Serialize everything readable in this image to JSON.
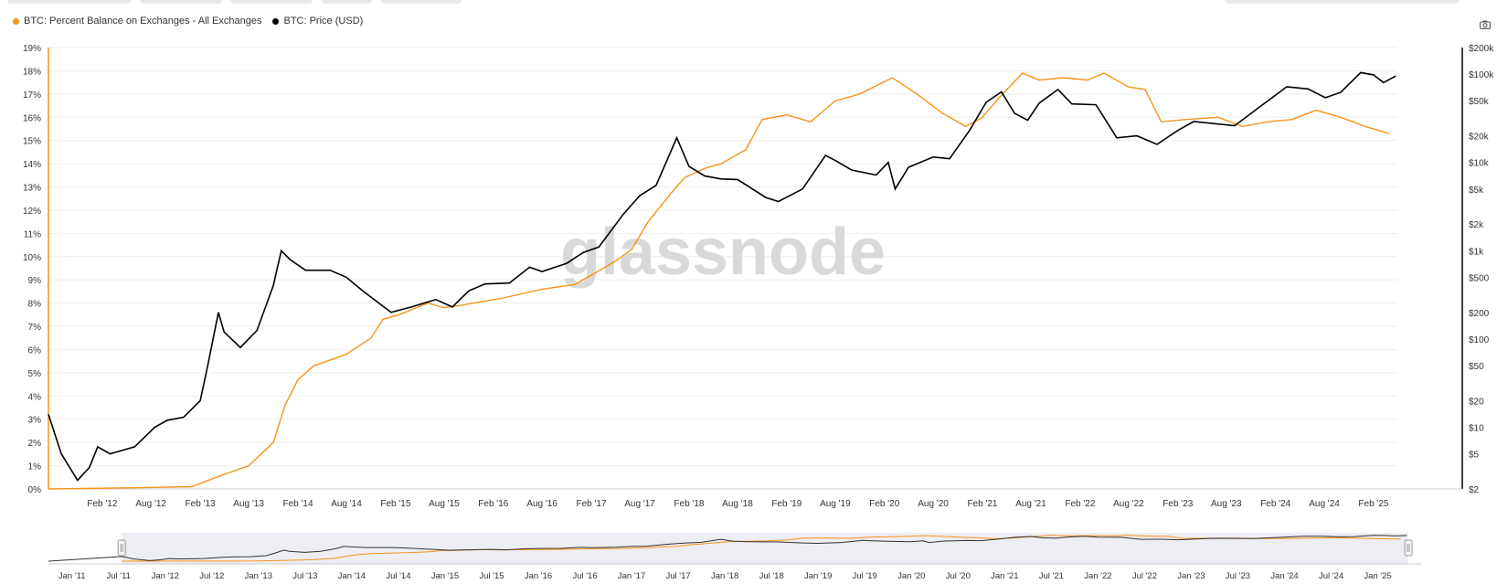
{
  "legend": {
    "series_1": "BTC: Percent Balance on Exchanges - All Exchanges",
    "series_2": "BTC: Price (USD)"
  },
  "watermark": "glassnode",
  "colors": {
    "balance": "#f7931a",
    "price": "#000000",
    "grid": "#eeeeee",
    "navigator_fill": "#eceef4"
  },
  "icons": {
    "camera": "camera-icon",
    "handle": "navigator-handle-icon"
  },
  "chart_data": {
    "type": "line",
    "y_left": {
      "ylim": [
        0,
        19
      ],
      "ticks": [
        "0%",
        "1%",
        "2%",
        "3%",
        "4%",
        "5%",
        "6%",
        "7%",
        "8%",
        "9%",
        "10%",
        "11%",
        "12%",
        "13%",
        "14%",
        "15%",
        "16%",
        "17%",
        "18%",
        "19%"
      ]
    },
    "y_right": {
      "scale": "log",
      "ticks": [
        {
          "label": "$2",
          "value": 2
        },
        {
          "label": "$5",
          "value": 5
        },
        {
          "label": "$10",
          "value": 10
        },
        {
          "label": "$20",
          "value": 20
        },
        {
          "label": "$50",
          "value": 50
        },
        {
          "label": "$100",
          "value": 100
        },
        {
          "label": "$200",
          "value": 200
        },
        {
          "label": "$500",
          "value": 500
        },
        {
          "label": "$1k",
          "value": 1000
        },
        {
          "label": "$2k",
          "value": 2000
        },
        {
          "label": "$5k",
          "value": 5000
        },
        {
          "label": "$10k",
          "value": 10000
        },
        {
          "label": "$20k",
          "value": 20000
        },
        {
          "label": "$50k",
          "value": 50000
        },
        {
          "label": "$100k",
          "value": 100000
        },
        {
          "label": "$200k",
          "value": 200000
        }
      ]
    },
    "x_range": [
      "2011-07-15",
      "2025-05-01"
    ],
    "x_ticks": [
      {
        "label": "Feb '12",
        "date": "2012-02-01"
      },
      {
        "label": "Aug '12",
        "date": "2012-08-01"
      },
      {
        "label": "Feb '13",
        "date": "2013-02-01"
      },
      {
        "label": "Aug '13",
        "date": "2013-08-01"
      },
      {
        "label": "Feb '14",
        "date": "2014-02-01"
      },
      {
        "label": "Aug '14",
        "date": "2014-08-01"
      },
      {
        "label": "Feb '15",
        "date": "2015-02-01"
      },
      {
        "label": "Aug '15",
        "date": "2015-08-01"
      },
      {
        "label": "Feb '16",
        "date": "2016-02-01"
      },
      {
        "label": "Aug '16",
        "date": "2016-08-01"
      },
      {
        "label": "Feb '17",
        "date": "2017-02-01"
      },
      {
        "label": "Aug '17",
        "date": "2017-08-01"
      },
      {
        "label": "Feb '18",
        "date": "2018-02-01"
      },
      {
        "label": "Aug '18",
        "date": "2018-08-01"
      },
      {
        "label": "Feb '19",
        "date": "2019-02-01"
      },
      {
        "label": "Aug '19",
        "date": "2019-08-01"
      },
      {
        "label": "Feb '20",
        "date": "2020-02-01"
      },
      {
        "label": "Aug '20",
        "date": "2020-08-01"
      },
      {
        "label": "Feb '21",
        "date": "2021-02-01"
      },
      {
        "label": "Aug '21",
        "date": "2021-08-01"
      },
      {
        "label": "Feb '22",
        "date": "2022-02-01"
      },
      {
        "label": "Aug '22",
        "date": "2022-08-01"
      },
      {
        "label": "Feb '23",
        "date": "2023-02-01"
      },
      {
        "label": "Aug '23",
        "date": "2023-08-01"
      },
      {
        "label": "Feb '24",
        "date": "2024-02-01"
      },
      {
        "label": "Aug '24",
        "date": "2024-08-01"
      },
      {
        "label": "Feb '25",
        "date": "2025-02-01"
      }
    ],
    "series": [
      {
        "name": "BTC: Percent Balance on Exchanges - All Exchanges",
        "axis": "left",
        "points": [
          [
            "2011-07-15",
            0.0
          ],
          [
            "2012-06-01",
            0.05
          ],
          [
            "2013-01-01",
            0.1
          ],
          [
            "2013-04-01",
            0.5
          ],
          [
            "2013-08-01",
            1.0
          ],
          [
            "2013-11-01",
            2.0
          ],
          [
            "2013-12-15",
            3.6
          ],
          [
            "2014-02-01",
            4.7
          ],
          [
            "2014-04-01",
            5.3
          ],
          [
            "2014-08-01",
            5.8
          ],
          [
            "2014-11-01",
            6.5
          ],
          [
            "2014-12-15",
            7.3
          ],
          [
            "2015-02-15",
            7.5
          ],
          [
            "2015-06-01",
            8.0
          ],
          [
            "2015-08-01",
            7.8
          ],
          [
            "2015-10-01",
            7.9
          ],
          [
            "2016-03-01",
            8.2
          ],
          [
            "2016-08-01",
            8.6
          ],
          [
            "2016-12-01",
            8.8
          ],
          [
            "2017-02-01",
            9.2
          ],
          [
            "2017-05-01",
            9.8
          ],
          [
            "2017-07-01",
            10.3
          ],
          [
            "2017-09-01",
            11.5
          ],
          [
            "2017-12-01",
            12.8
          ],
          [
            "2018-01-15",
            13.4
          ],
          [
            "2018-04-01",
            13.8
          ],
          [
            "2018-06-01",
            14.0
          ],
          [
            "2018-09-01",
            14.6
          ],
          [
            "2018-11-01",
            15.9
          ],
          [
            "2019-02-01",
            16.1
          ],
          [
            "2019-05-01",
            15.8
          ],
          [
            "2019-08-01",
            16.7
          ],
          [
            "2019-11-01",
            17.0
          ],
          [
            "2020-03-01",
            17.7
          ],
          [
            "2020-06-01",
            17.0
          ],
          [
            "2020-09-01",
            16.2
          ],
          [
            "2020-12-01",
            15.6
          ],
          [
            "2021-02-01",
            16.0
          ],
          [
            "2021-04-01",
            16.8
          ],
          [
            "2021-07-01",
            17.9
          ],
          [
            "2021-09-01",
            17.6
          ],
          [
            "2021-12-01",
            17.7
          ],
          [
            "2022-03-01",
            17.6
          ],
          [
            "2022-05-01",
            17.9
          ],
          [
            "2022-08-01",
            17.3
          ],
          [
            "2022-10-01",
            17.2
          ],
          [
            "2022-12-01",
            15.8
          ],
          [
            "2023-03-01",
            15.9
          ],
          [
            "2023-07-01",
            16.0
          ],
          [
            "2023-10-01",
            15.6
          ],
          [
            "2024-01-01",
            15.8
          ],
          [
            "2024-04-01",
            15.9
          ],
          [
            "2024-07-01",
            16.3
          ],
          [
            "2024-10-01",
            16.0
          ],
          [
            "2025-01-01",
            15.6
          ],
          [
            "2025-04-01",
            15.3
          ]
        ]
      },
      {
        "name": "BTC: Price (USD)",
        "axis": "right",
        "points": [
          [
            "2011-07-15",
            14
          ],
          [
            "2011-09-01",
            5
          ],
          [
            "2011-11-01",
            2.5
          ],
          [
            "2011-12-15",
            3.5
          ],
          [
            "2012-01-15",
            6
          ],
          [
            "2012-03-01",
            5
          ],
          [
            "2012-06-01",
            6
          ],
          [
            "2012-08-15",
            10
          ],
          [
            "2012-10-01",
            12
          ],
          [
            "2012-12-01",
            13
          ],
          [
            "2013-02-01",
            20
          ],
          [
            "2013-03-01",
            50
          ],
          [
            "2013-04-10",
            200
          ],
          [
            "2013-05-01",
            120
          ],
          [
            "2013-07-01",
            80
          ],
          [
            "2013-09-01",
            125
          ],
          [
            "2013-11-01",
            400
          ],
          [
            "2013-12-01",
            1000
          ],
          [
            "2014-01-01",
            800
          ],
          [
            "2014-03-01",
            600
          ],
          [
            "2014-06-01",
            600
          ],
          [
            "2014-08-01",
            500
          ],
          [
            "2014-10-01",
            350
          ],
          [
            "2015-01-15",
            200
          ],
          [
            "2015-04-01",
            230
          ],
          [
            "2015-07-01",
            280
          ],
          [
            "2015-09-01",
            230
          ],
          [
            "2015-11-01",
            350
          ],
          [
            "2016-01-01",
            420
          ],
          [
            "2016-04-01",
            430
          ],
          [
            "2016-06-15",
            650
          ],
          [
            "2016-08-01",
            580
          ],
          [
            "2016-11-01",
            720
          ],
          [
            "2017-01-01",
            950
          ],
          [
            "2017-03-01",
            1100
          ],
          [
            "2017-06-01",
            2600
          ],
          [
            "2017-08-01",
            4200
          ],
          [
            "2017-10-01",
            5500
          ],
          [
            "2017-12-17",
            19000
          ],
          [
            "2018-02-01",
            9000
          ],
          [
            "2018-04-01",
            7000
          ],
          [
            "2018-06-01",
            6500
          ],
          [
            "2018-08-01",
            6400
          ],
          [
            "2018-11-15",
            4000
          ],
          [
            "2019-01-01",
            3600
          ],
          [
            "2019-04-01",
            5000
          ],
          [
            "2019-06-26",
            12000
          ],
          [
            "2019-08-01",
            10500
          ],
          [
            "2019-10-01",
            8200
          ],
          [
            "2020-01-01",
            7200
          ],
          [
            "2020-02-15",
            10000
          ],
          [
            "2020-03-12",
            5000
          ],
          [
            "2020-05-01",
            8800
          ],
          [
            "2020-08-01",
            11500
          ],
          [
            "2020-10-01",
            11000
          ],
          [
            "2020-12-15",
            23000
          ],
          [
            "2021-02-15",
            48000
          ],
          [
            "2021-04-13",
            63000
          ],
          [
            "2021-06-01",
            36000
          ],
          [
            "2021-07-20",
            30000
          ],
          [
            "2021-09-01",
            47000
          ],
          [
            "2021-11-10",
            67000
          ],
          [
            "2022-01-01",
            46000
          ],
          [
            "2022-04-01",
            45000
          ],
          [
            "2022-06-18",
            19000
          ],
          [
            "2022-09-01",
            20000
          ],
          [
            "2022-11-15",
            16000
          ],
          [
            "2023-02-01",
            23000
          ],
          [
            "2023-04-01",
            29000
          ],
          [
            "2023-09-01",
            26000
          ],
          [
            "2023-12-01",
            42000
          ],
          [
            "2024-03-14",
            72000
          ],
          [
            "2024-06-01",
            68000
          ],
          [
            "2024-08-05",
            54000
          ],
          [
            "2024-10-01",
            62000
          ],
          [
            "2024-12-15",
            104000
          ],
          [
            "2025-02-01",
            98000
          ],
          [
            "2025-03-10",
            80000
          ],
          [
            "2025-04-25",
            95000
          ]
        ]
      }
    ],
    "navigator": {
      "x_ticks": [
        "Jan '11",
        "Jul '11",
        "Jan '12",
        "Jul '12",
        "Jan '13",
        "Jul '13",
        "Jan '14",
        "Jul '14",
        "Jan '15",
        "Jul '15",
        "Jan '16",
        "Jul '16",
        "Jan '17",
        "Jul '17",
        "Jan '18",
        "Jul '18",
        "Jan '19",
        "Jul '19",
        "Jan '20",
        "Jul '20",
        "Jan '21",
        "Jul '21",
        "Jan '22",
        "Jul '22",
        "Jan '23",
        "Jul '23",
        "Jan '24",
        "Jul '24",
        "Jan '25"
      ],
      "range": [
        "2010-10-01",
        "2025-05-15"
      ],
      "selection": [
        "2011-07-15",
        "2025-05-01"
      ]
    }
  }
}
